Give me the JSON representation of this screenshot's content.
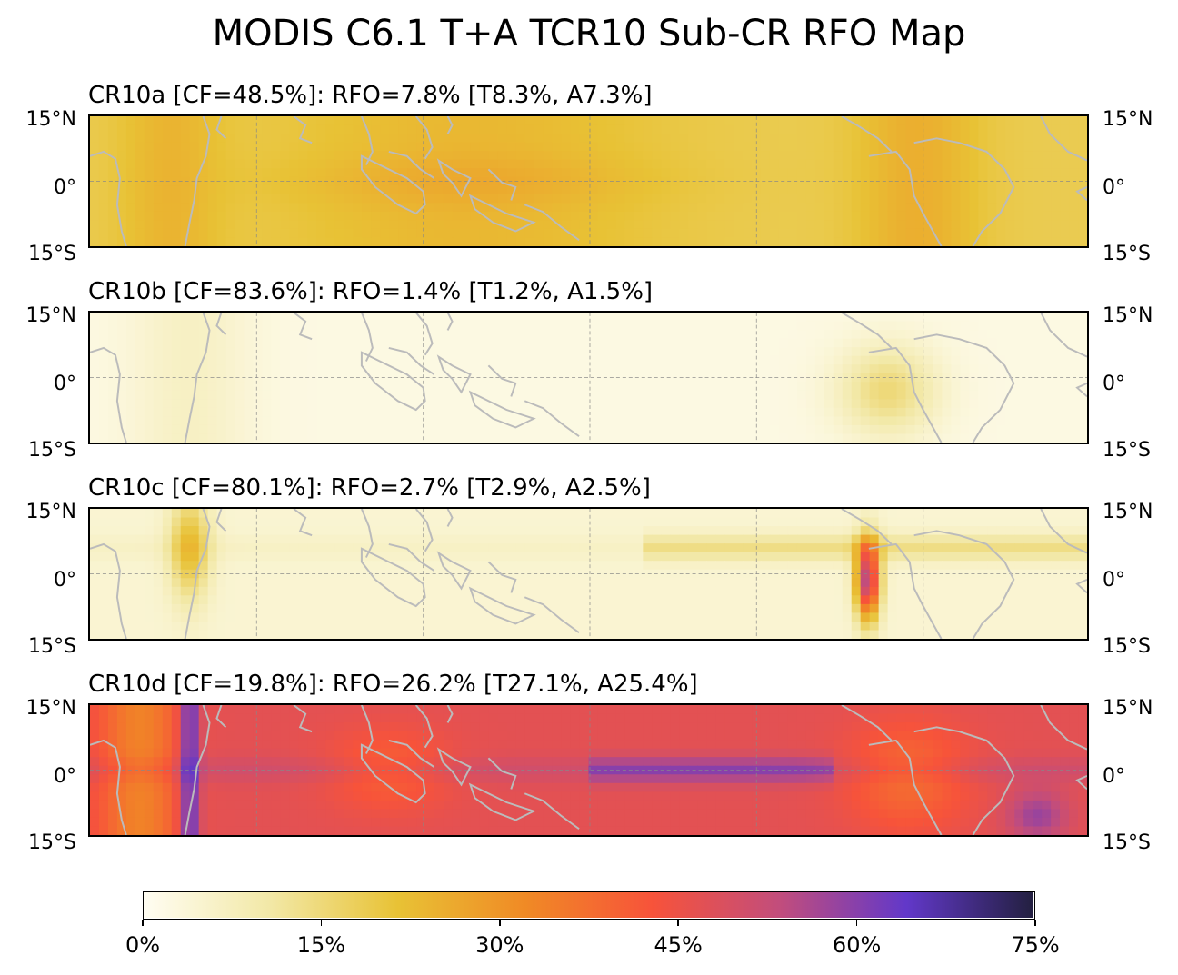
{
  "figure": {
    "title": "MODIS C6.1 T+A TCR10 Sub-CR RFO Map"
  },
  "lat_labels": {
    "north": "15°N",
    "equator": "0°",
    "south": "15°S"
  },
  "panels": [
    {
      "id": "CR10a",
      "title": "CR10a [CF=48.5%]: RFO=7.8% [T8.3%, A7.3%]",
      "base_level": 0.25,
      "peak_level": 0.42
    },
    {
      "id": "CR10b",
      "title": "CR10b [CF=83.6%]: RFO=1.4% [T1.2%, A1.5%]",
      "base_level": 0.03,
      "peak_level": 0.22
    },
    {
      "id": "CR10c",
      "title": "CR10c [CF=80.1%]: RFO=2.7% [T2.9%, A2.5%]",
      "base_level": 0.06,
      "peak_level": 0.75
    },
    {
      "id": "CR10d",
      "title": "CR10d [CF=19.8%]: RFO=26.2% [T27.1%, A25.4%]",
      "base_level": 0.45,
      "peak_level": 0.95
    }
  ],
  "colorbar": {
    "ticks": [
      "0%",
      "15%",
      "30%",
      "45%",
      "60%",
      "75%"
    ],
    "range": [
      0,
      75
    ],
    "unit": "%",
    "colors": [
      "#fffdf2",
      "#f2e8a6",
      "#e8c235",
      "#f08a25",
      "#f7533a",
      "#c24d7c",
      "#6238c9",
      "#232040"
    ]
  },
  "colors": {
    "coastline": "#bbbbbb",
    "gridline": "#888888"
  }
}
